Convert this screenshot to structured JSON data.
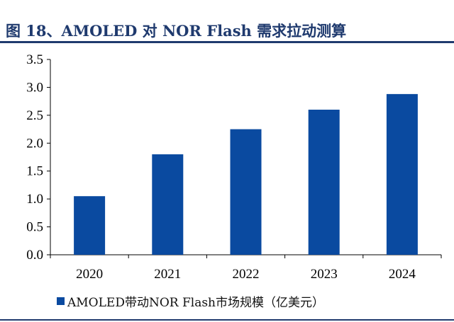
{
  "header": {
    "title": "图 18、AMOLED 对 NOR Flash 需求拉动测算"
  },
  "colors": {
    "bar": "#0a4aa0",
    "axis": "#000000",
    "accent": "#1f3a6e"
  },
  "chart_data": {
    "type": "bar",
    "title": "",
    "xlabel": "",
    "ylabel": "",
    "categories": [
      "2020",
      "2021",
      "2022",
      "2023",
      "2024"
    ],
    "series": [
      {
        "name": "AMOLED带动NOR Flash市场规模（亿美元）",
        "values": [
          1.05,
          1.8,
          2.25,
          2.6,
          2.88
        ]
      }
    ],
    "ylim": [
      0,
      3.5
    ],
    "yticks": [
      "0.0",
      "0.5",
      "1.0",
      "1.5",
      "2.0",
      "2.5",
      "3.0",
      "3.5"
    ],
    "grid": false,
    "legend_position": "bottom-left"
  }
}
